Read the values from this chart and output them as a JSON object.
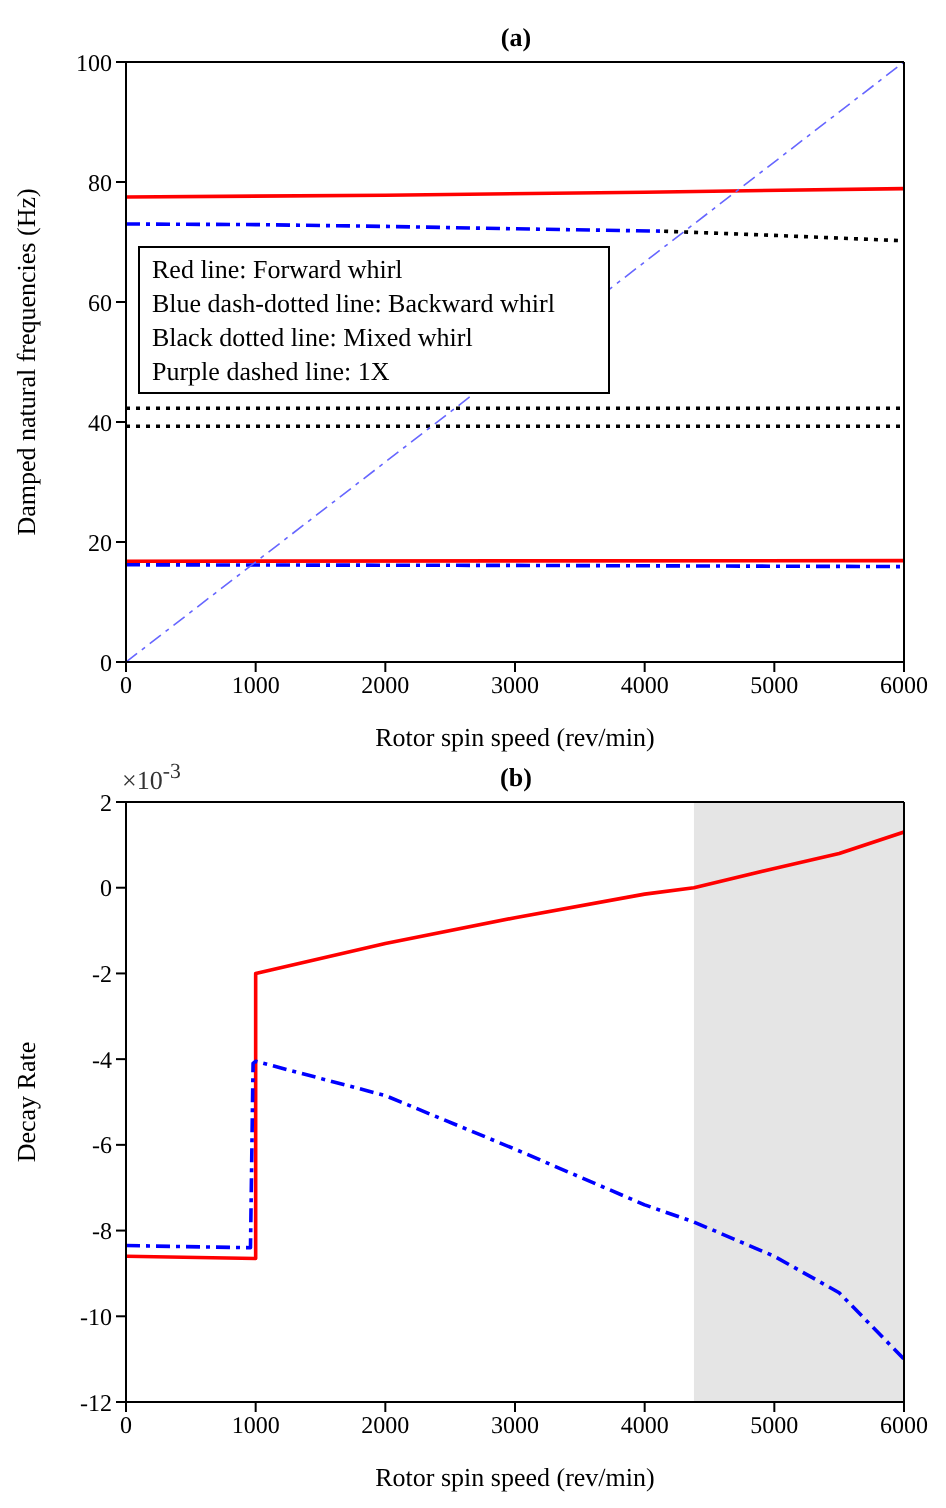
{
  "chart_data": [
    {
      "type": "line",
      "title": "(a)",
      "xlabel": "Rotor spin speed (rev/min)",
      "ylabel": "Damped natural frequencies (Hz)",
      "xlim": [
        0,
        6000
      ],
      "xticks": [
        0,
        1000,
        2000,
        3000,
        4000,
        5000,
        6000
      ],
      "ylim": [
        0,
        100
      ],
      "yticks": [
        0,
        20,
        40,
        60,
        80,
        100
      ],
      "annotations": [
        "Red line: Forward whirl",
        "Blue dash-dotted line: Backward whirl",
        "Black dotted line: Mixed whirl",
        "Purple dashed line: 1X"
      ],
      "series": [
        {
          "color": "#ff0000",
          "line_style": "solid",
          "x": [
            0,
            2000,
            4000,
            6000
          ],
          "values": [
            77.5,
            77.8,
            78.3,
            78.9
          ]
        },
        {
          "color": "#0000ff",
          "line_style": "dashed",
          "x": [
            0,
            1000,
            2000,
            3000,
            4150
          ],
          "values": [
            73,
            72.9,
            72.6,
            72.2,
            71.8
          ]
        },
        {
          "color": "#000000",
          "line_style": "dotted",
          "x": [
            4150,
            5000,
            6000
          ],
          "values": [
            71.8,
            71.1,
            70.2
          ]
        },
        {
          "color": "#000000",
          "line_style": "dotted",
          "x": [
            0,
            6000
          ],
          "values": [
            42.3,
            42.3
          ]
        },
        {
          "color": "#000000",
          "line_style": "dotted",
          "x": [
            0,
            6000
          ],
          "values": [
            39.3,
            39.3
          ]
        },
        {
          "color": "#ff0000",
          "line_style": "solid",
          "x": [
            0,
            6000
          ],
          "values": [
            16.8,
            16.9
          ]
        },
        {
          "color": "#0000ff",
          "line_style": "dashed",
          "x": [
            0,
            3000,
            6000
          ],
          "values": [
            16.2,
            16.1,
            15.9
          ]
        },
        {
          "color": "#6666ff",
          "line_style": "dashed",
          "x": [
            0,
            6000
          ],
          "values": [
            0,
            100
          ]
        }
      ]
    },
    {
      "type": "line",
      "title": "(b)",
      "xlabel": "Rotor spin speed (rev/min)",
      "ylabel": "Decay Rate",
      "xlim": [
        0,
        6000
      ],
      "xticks": [
        0,
        1000,
        2000,
        3000,
        4000,
        5000,
        6000
      ],
      "ylim": [
        -12,
        2
      ],
      "yticks": [
        -12,
        -10,
        -8,
        -6,
        -4,
        -2,
        0,
        2
      ],
      "annotations": [
        "×10$^{-3}$"
      ],
      "bands": [
        {
          "axis": "x",
          "from": 4380,
          "to": 6000,
          "color": "#e5e5e5"
        }
      ],
      "series": [
        {
          "color": "#ff0000",
          "line_style": "solid",
          "x": [
            0,
            1000,
            1000,
            2000,
            3000,
            4000,
            4380,
            5000,
            5500,
            6000
          ],
          "values": [
            -8.6,
            -8.65,
            -2,
            -1.3,
            -0.7,
            -0.15,
            0,
            0.45,
            0.8,
            1.3
          ]
        },
        {
          "color": "#0000ff",
          "line_style": "dashed",
          "x": [
            0,
            960,
            980,
            1000,
            2000,
            3000,
            4000,
            4380,
            5000,
            5500,
            6000
          ],
          "values": [
            -8.35,
            -8.4,
            -4.1,
            -4.05,
            -4.85,
            -6.1,
            -7.4,
            -7.8,
            -8.6,
            -9.45,
            -11
          ]
        }
      ]
    }
  ]
}
